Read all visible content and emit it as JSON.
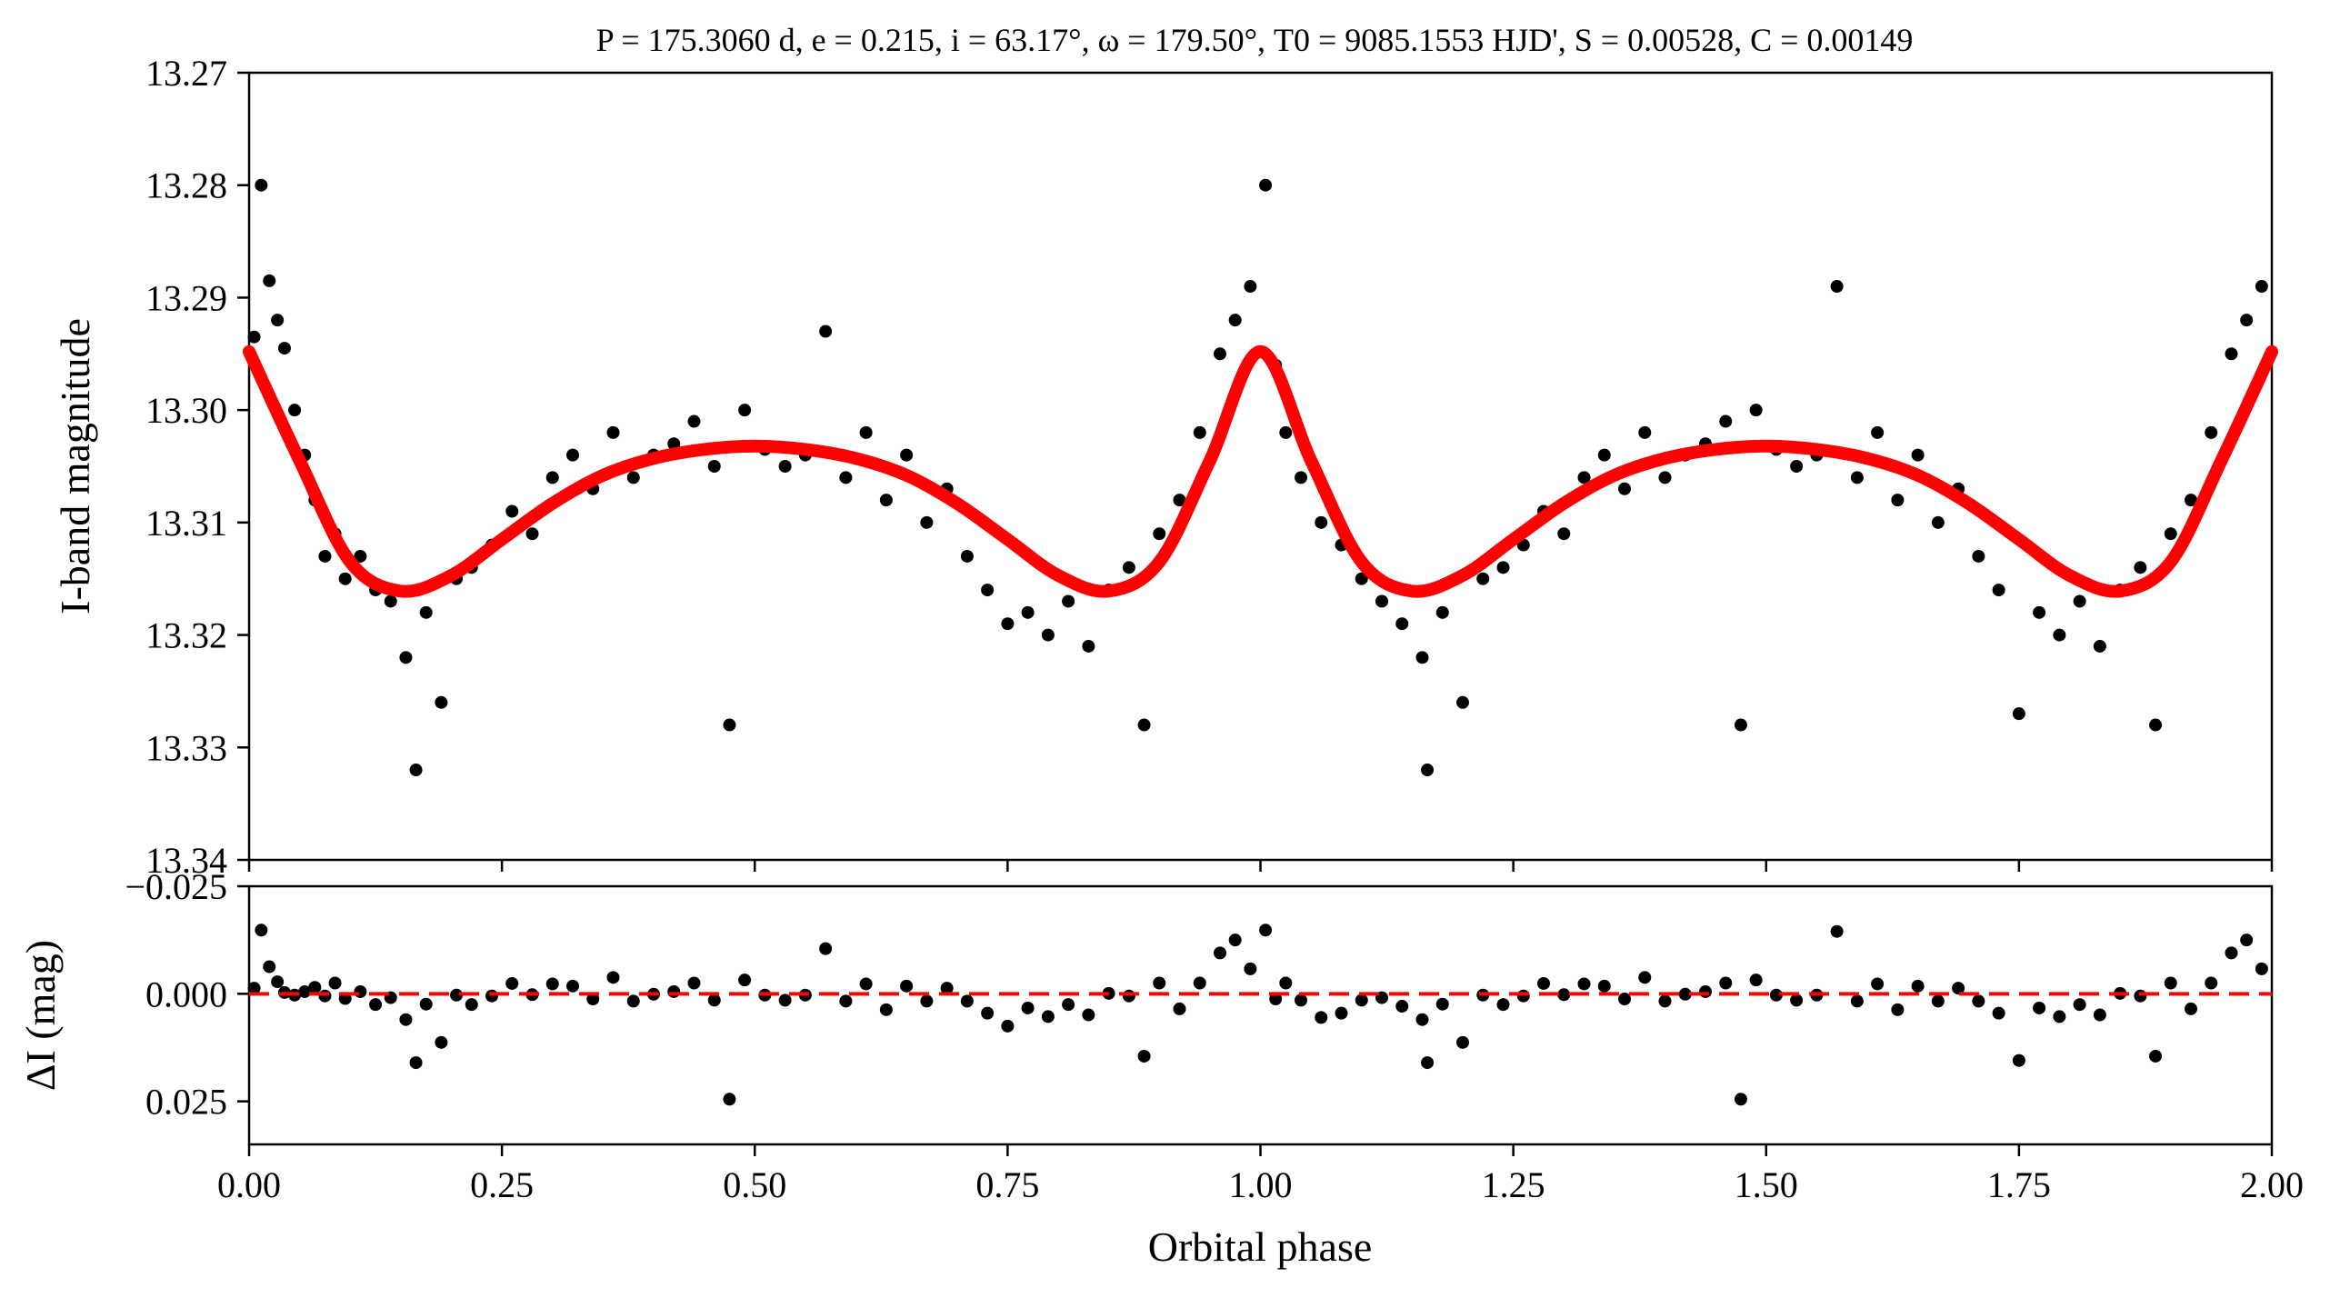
{
  "chart_data": [
    {
      "type": "scatter",
      "panel": "light-curve",
      "title": "P = 175.3060 d, e = 0.215, i = 63.17°, ω = 179.50°, T0 = 9085.1553 HJD', S = 0.00528, C = 0.00149",
      "ylabel": "I-band magnitude",
      "xlabel": "",
      "xlim": [
        0.0,
        2.0
      ],
      "ylim": [
        13.34,
        13.27
      ],
      "y_inverted": true,
      "xticks": [
        0.0,
        0.25,
        0.5,
        0.75,
        1.0,
        1.25,
        1.5,
        1.75,
        2.0
      ],
      "yticks": [
        13.27,
        13.28,
        13.29,
        13.3,
        13.31,
        13.32,
        13.33,
        13.34
      ],
      "ytick_labels": [
        "13.27",
        "13.28",
        "13.29",
        "13.30",
        "13.31",
        "13.32",
        "13.33",
        "13.34"
      ],
      "series": [
        {
          "kind": "points",
          "color": "#000000",
          "x": [
            0.005,
            0.012,
            0.02,
            0.028,
            0.035,
            0.045,
            0.055,
            0.065,
            0.075,
            0.085,
            0.095,
            0.11,
            0.125,
            0.14,
            0.155,
            0.165,
            0.175,
            0.19,
            0.205,
            0.22,
            0.24,
            0.26,
            0.28,
            0.3,
            0.32,
            0.34,
            0.36,
            0.38,
            0.4,
            0.42,
            0.44,
            0.46,
            0.475,
            0.49,
            0.51,
            0.53,
            0.55,
            0.57,
            0.59,
            0.61,
            0.63,
            0.65,
            0.67,
            0.69,
            0.71,
            0.73,
            0.75,
            0.77,
            0.79,
            0.81,
            0.83,
            0.85,
            0.87,
            0.885,
            0.9,
            0.92,
            0.94,
            0.96,
            0.975,
            0.99,
            1.005,
            1.015,
            1.025,
            1.04,
            1.06,
            1.08,
            1.1,
            1.12,
            1.14,
            1.16,
            1.165,
            1.18,
            1.2,
            1.22,
            1.24,
            1.26,
            1.28,
            1.3,
            1.32,
            1.34,
            1.36,
            1.38,
            1.4,
            1.42,
            1.44,
            1.46,
            1.475,
            1.49,
            1.51,
            1.53,
            1.55,
            1.57,
            1.59,
            1.61,
            1.63,
            1.65,
            1.67,
            1.69,
            1.71,
            1.73,
            1.75,
            1.77,
            1.79,
            1.81,
            1.83,
            1.85,
            1.87,
            1.885,
            1.9,
            1.92,
            1.94,
            1.96,
            1.975,
            1.99
          ],
          "y": [
            13.2935,
            13.28,
            13.2885,
            13.292,
            13.2945,
            13.3,
            13.304,
            13.308,
            13.313,
            13.311,
            13.315,
            13.313,
            13.316,
            13.317,
            13.322,
            13.332,
            13.318,
            13.326,
            13.315,
            13.314,
            13.312,
            13.309,
            13.311,
            13.306,
            13.304,
            13.307,
            13.302,
            13.306,
            13.304,
            13.303,
            13.301,
            13.305,
            13.328,
            13.3,
            13.3035,
            13.305,
            13.304,
            13.293,
            13.306,
            13.302,
            13.308,
            13.304,
            13.31,
            13.307,
            13.313,
            13.316,
            13.319,
            13.318,
            13.32,
            13.317,
            13.321,
            13.316,
            13.314,
            13.328,
            13.311,
            13.308,
            13.302,
            13.295,
            13.292,
            13.289,
            13.28,
            13.296,
            13.302,
            13.306,
            13.31,
            13.312,
            13.315,
            13.317,
            13.319,
            13.322,
            13.332,
            13.318,
            13.326,
            13.315,
            13.314,
            13.312,
            13.309,
            13.311,
            13.306,
            13.304,
            13.307,
            13.302,
            13.306,
            13.304,
            13.303,
            13.301,
            13.328,
            13.3,
            13.3035,
            13.305,
            13.304,
            13.289,
            13.306,
            13.302,
            13.308,
            13.304,
            13.31,
            13.307,
            13.313,
            13.316,
            13.327,
            13.318,
            13.32,
            13.317,
            13.321,
            13.316,
            13.314,
            13.328,
            13.311,
            13.308,
            13.302,
            13.295,
            13.292,
            13.289
          ]
        },
        {
          "kind": "model-curve",
          "color": "#ff0000",
          "x": [
            0.0,
            0.05,
            0.1,
            0.15,
            0.2,
            0.25,
            0.3,
            0.35,
            0.4,
            0.45,
            0.5,
            0.55,
            0.6,
            0.65,
            0.7,
            0.75,
            0.8,
            0.85,
            0.9,
            0.95,
            1.0,
            1.05,
            1.1,
            1.15,
            1.2,
            1.25,
            1.3,
            1.35,
            1.4,
            1.45,
            1.5,
            1.55,
            1.6,
            1.65,
            1.7,
            1.75,
            1.8,
            1.85,
            1.9,
            1.95,
            2.0
          ],
          "y": [
            13.2948,
            13.3045,
            13.3135,
            13.3161,
            13.3147,
            13.3115,
            13.3083,
            13.3058,
            13.3043,
            13.3035,
            13.3032,
            13.3035,
            13.3043,
            13.3058,
            13.3083,
            13.3115,
            13.3147,
            13.3161,
            13.3135,
            13.3045,
            13.2948,
            13.3045,
            13.3135,
            13.3161,
            13.3147,
            13.3115,
            13.3083,
            13.3058,
            13.3043,
            13.3035,
            13.3032,
            13.3035,
            13.3043,
            13.3058,
            13.3083,
            13.3115,
            13.3147,
            13.3161,
            13.3135,
            13.3045,
            13.2948
          ]
        }
      ]
    },
    {
      "type": "scatter",
      "panel": "residuals",
      "title": "",
      "ylabel": "ΔI (mag)",
      "xlabel": "Orbital phase",
      "xlim": [
        0.0,
        2.0
      ],
      "ylim": [
        0.035,
        -0.025
      ],
      "y_inverted": true,
      "xticks": [
        0.0,
        0.25,
        0.5,
        0.75,
        1.0,
        1.25,
        1.5,
        1.75,
        2.0
      ],
      "xtick_labels": [
        "0.00",
        "0.25",
        "0.50",
        "0.75",
        "1.00",
        "1.25",
        "1.50",
        "1.75",
        "2.00"
      ],
      "yticks": [
        -0.025,
        0.0,
        0.025
      ],
      "ytick_labels": [
        "−0.025",
        "0.000",
        "0.025"
      ],
      "series": [
        {
          "kind": "points",
          "color": "#000000",
          "x": [
            0.005,
            0.012,
            0.02,
            0.028,
            0.035,
            0.045,
            0.055,
            0.065,
            0.075,
            0.085,
            0.095,
            0.11,
            0.125,
            0.14,
            0.155,
            0.165,
            0.175,
            0.19,
            0.205,
            0.22,
            0.24,
            0.26,
            0.28,
            0.3,
            0.32,
            0.34,
            0.36,
            0.38,
            0.4,
            0.42,
            0.44,
            0.46,
            0.475,
            0.49,
            0.51,
            0.53,
            0.55,
            0.57,
            0.59,
            0.61,
            0.63,
            0.65,
            0.67,
            0.69,
            0.71,
            0.73,
            0.75,
            0.77,
            0.79,
            0.81,
            0.83,
            0.85,
            0.87,
            0.885,
            0.9,
            0.92,
            0.94,
            0.96,
            0.975,
            0.99,
            1.005,
            1.015,
            1.025,
            1.04,
            1.06,
            1.08,
            1.1,
            1.12,
            1.14,
            1.16,
            1.165,
            1.18,
            1.2,
            1.22,
            1.24,
            1.26,
            1.28,
            1.3,
            1.32,
            1.34,
            1.36,
            1.38,
            1.4,
            1.42,
            1.44,
            1.46,
            1.475,
            1.49,
            1.51,
            1.53,
            1.55,
            1.57,
            1.59,
            1.61,
            1.63,
            1.65,
            1.67,
            1.69,
            1.71,
            1.73,
            1.75,
            1.77,
            1.79,
            1.81,
            1.83,
            1.85,
            1.87,
            1.885,
            1.9,
            1.92,
            1.94,
            1.96,
            1.975,
            1.99
          ],
          "y": [
            -0.0013,
            -0.0148,
            -0.0063,
            -0.0028,
            -0.0003,
            0.0003,
            -0.0005,
            -0.0015,
            0.0005,
            -0.0025,
            0.0011,
            -0.0005,
            0.0025,
            0.0009,
            0.006,
            0.016,
            0.0024,
            0.0113,
            0.0003,
            0.0025,
            0.0005,
            -0.0024,
            0.0002,
            -0.0023,
            -0.0018,
            0.0012,
            -0.0038,
            0.0017,
            0.0001,
            -0.0005,
            -0.0025,
            0.0015,
            0.0245,
            -0.0032,
            0.0003,
            0.0015,
            0.0003,
            -0.0105,
            0.0017,
            -0.0023,
            0.0037,
            -0.0018,
            0.0017,
            -0.0013,
            0.0017,
            0.0045,
            0.0075,
            0.0033,
            0.0053,
            0.0025,
            0.0049,
            -0.0001,
            0.0005,
            0.0145,
            -0.0025,
            0.0035,
            -0.0025,
            -0.0095,
            -0.0125,
            -0.0058,
            -0.0148,
            0.0012,
            -0.0025,
            0.0015,
            0.0055,
            0.0045,
            0.0015,
            0.0009,
            0.0029,
            0.006,
            0.016,
            0.0024,
            0.0113,
            0.0003,
            0.0025,
            0.0005,
            -0.0024,
            0.0002,
            -0.0023,
            -0.0018,
            0.0012,
            -0.0038,
            0.0017,
            0.0001,
            -0.0005,
            -0.0025,
            0.0245,
            -0.0032,
            0.0003,
            0.0015,
            0.0003,
            -0.0145,
            0.0017,
            -0.0023,
            0.0037,
            -0.0018,
            0.0017,
            -0.0013,
            0.0017,
            0.0045,
            0.0155,
            0.0033,
            0.0053,
            0.0025,
            0.0049,
            -0.0001,
            0.0005,
            0.0145,
            -0.0025,
            0.0035,
            -0.0025,
            -0.0095,
            -0.0125,
            -0.0058
          ]
        },
        {
          "kind": "zero-line",
          "color": "#ff0000",
          "style": "dashed",
          "y": 0.0
        }
      ]
    }
  ]
}
